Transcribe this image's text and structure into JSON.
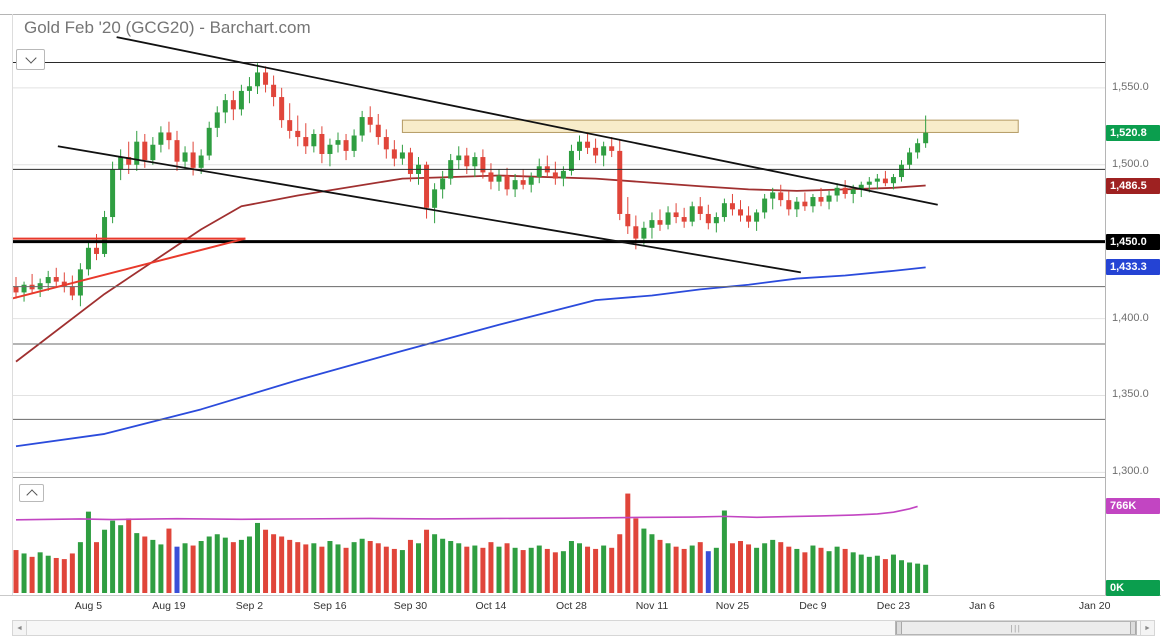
{
  "header": {
    "title": "Gold Feb '20 (GCG20) - Barchart.com"
  },
  "icons": {
    "arrow_left": "◄",
    "arrow_right": "►",
    "grip": "|||"
  },
  "chart_data": {
    "type": "candlestick",
    "title": "Gold Feb '20 (GCG20) - Barchart.com",
    "symbol": "GCG20",
    "colors": {
      "up": "#2f9e41",
      "down": "#e0453a",
      "blue_bar": "#3a4fd8",
      "oi": "#c245c2",
      "ma_red": "#a03030",
      "ma_blue": "#2b4bdc",
      "trend": "#111111",
      "red_line": "#e8392b",
      "grid": "#e2e2e2"
    },
    "price_axis": {
      "ylim": [
        1297,
        1598
      ],
      "ticks": [
        {
          "label": "1,550.0",
          "value": 1550
        },
        {
          "label": "1,500.0",
          "value": 1500
        },
        {
          "label": "1,450.0",
          "value": 1450
        },
        {
          "label": "1,400.0",
          "value": 1400
        },
        {
          "label": "1,350.0",
          "value": 1350
        },
        {
          "label": "1,300.0",
          "value": 1300
        }
      ]
    },
    "x_labels": [
      {
        "label": "Aug 5",
        "index": 9
      },
      {
        "label": "Aug 19",
        "index": 19
      },
      {
        "label": "Sep 2",
        "index": 29
      },
      {
        "label": "Sep 16",
        "index": 39
      },
      {
        "label": "Sep 30",
        "index": 49
      },
      {
        "label": "Oct 14",
        "index": 59
      },
      {
        "label": "Oct 28",
        "index": 69
      },
      {
        "label": "Nov 11",
        "index": 79
      },
      {
        "label": "Nov 25",
        "index": 89
      },
      {
        "label": "Dec 9",
        "index": 99
      },
      {
        "label": "Dec 23",
        "index": 109
      },
      {
        "label": "Jan 6",
        "index": 120
      },
      {
        "label": "Jan 20",
        "index": 134
      }
    ],
    "candles": [
      [
        1421,
        1427,
        1413,
        1417
      ],
      [
        1417,
        1424,
        1411,
        1422
      ],
      [
        1422,
        1429,
        1416,
        1419
      ],
      [
        1419,
        1426,
        1414,
        1423
      ],
      [
        1423,
        1431,
        1418,
        1427
      ],
      [
        1427,
        1433,
        1420,
        1424
      ],
      [
        1424,
        1430,
        1417,
        1421
      ],
      [
        1421,
        1428,
        1412,
        1415
      ],
      [
        1415,
        1436,
        1408,
        1432
      ],
      [
        1432,
        1450,
        1428,
        1446
      ],
      [
        1446,
        1455,
        1438,
        1442
      ],
      [
        1442,
        1470,
        1440,
        1466
      ],
      [
        1466,
        1502,
        1462,
        1497
      ],
      [
        1497,
        1510,
        1490,
        1505
      ],
      [
        1505,
        1515,
        1494,
        1500
      ],
      [
        1500,
        1522,
        1496,
        1515
      ],
      [
        1515,
        1520,
        1498,
        1503
      ],
      [
        1503,
        1518,
        1500,
        1513
      ],
      [
        1513,
        1525,
        1508,
        1521
      ],
      [
        1521,
        1528,
        1510,
        1516
      ],
      [
        1516,
        1522,
        1496,
        1502
      ],
      [
        1502,
        1512,
        1497,
        1508
      ],
      [
        1508,
        1515,
        1493,
        1498
      ],
      [
        1498,
        1510,
        1494,
        1506
      ],
      [
        1506,
        1528,
        1503,
        1524
      ],
      [
        1524,
        1538,
        1518,
        1534
      ],
      [
        1534,
        1546,
        1527,
        1542
      ],
      [
        1542,
        1548,
        1529,
        1536
      ],
      [
        1536,
        1552,
        1532,
        1548
      ],
      [
        1548,
        1557,
        1540,
        1551
      ],
      [
        1551,
        1566,
        1546,
        1560
      ],
      [
        1560,
        1564,
        1547,
        1552
      ],
      [
        1552,
        1558,
        1538,
        1544
      ],
      [
        1544,
        1550,
        1524,
        1529
      ],
      [
        1529,
        1540,
        1517,
        1522
      ],
      [
        1522,
        1532,
        1512,
        1518
      ],
      [
        1518,
        1527,
        1507,
        1512
      ],
      [
        1512,
        1523,
        1508,
        1520
      ],
      [
        1520,
        1525,
        1501,
        1507
      ],
      [
        1507,
        1517,
        1499,
        1513
      ],
      [
        1513,
        1521,
        1508,
        1516
      ],
      [
        1516,
        1520,
        1503,
        1509
      ],
      [
        1509,
        1523,
        1505,
        1519
      ],
      [
        1519,
        1535,
        1515,
        1531
      ],
      [
        1531,
        1538,
        1521,
        1526
      ],
      [
        1526,
        1533,
        1513,
        1518
      ],
      [
        1518,
        1523,
        1504,
        1510
      ],
      [
        1510,
        1516,
        1499,
        1504
      ],
      [
        1504,
        1513,
        1500,
        1508
      ],
      [
        1508,
        1511,
        1489,
        1494
      ],
      [
        1494,
        1505,
        1487,
        1500
      ],
      [
        1500,
        1502,
        1465,
        1472
      ],
      [
        1472,
        1488,
        1462,
        1484
      ],
      [
        1484,
        1496,
        1478,
        1491
      ],
      [
        1491,
        1507,
        1487,
        1503
      ],
      [
        1503,
        1512,
        1497,
        1506
      ],
      [
        1506,
        1511,
        1494,
        1499
      ],
      [
        1499,
        1508,
        1492,
        1505
      ],
      [
        1505,
        1510,
        1491,
        1495
      ],
      [
        1495,
        1501,
        1484,
        1489
      ],
      [
        1489,
        1497,
        1483,
        1493
      ],
      [
        1493,
        1498,
        1480,
        1484
      ],
      [
        1484,
        1494,
        1479,
        1490
      ],
      [
        1490,
        1497,
        1484,
        1487
      ],
      [
        1487,
        1495,
        1482,
        1492
      ],
      [
        1492,
        1504,
        1488,
        1499
      ],
      [
        1499,
        1506,
        1492,
        1495
      ],
      [
        1495,
        1502,
        1487,
        1491
      ],
      [
        1491,
        1499,
        1486,
        1496
      ],
      [
        1496,
        1513,
        1493,
        1509
      ],
      [
        1509,
        1519,
        1503,
        1515
      ],
      [
        1515,
        1521,
        1507,
        1511
      ],
      [
        1511,
        1517,
        1501,
        1506
      ],
      [
        1506,
        1515,
        1499,
        1512
      ],
      [
        1512,
        1518,
        1505,
        1509
      ],
      [
        1509,
        1516,
        1464,
        1468
      ],
      [
        1468,
        1479,
        1455,
        1460
      ],
      [
        1460,
        1467,
        1445,
        1452
      ],
      [
        1452,
        1463,
        1448,
        1459
      ],
      [
        1459,
        1469,
        1452,
        1464
      ],
      [
        1464,
        1471,
        1457,
        1461
      ],
      [
        1461,
        1473,
        1458,
        1469
      ],
      [
        1469,
        1475,
        1462,
        1466
      ],
      [
        1466,
        1472,
        1459,
        1463
      ],
      [
        1463,
        1476,
        1460,
        1473
      ],
      [
        1473,
        1479,
        1464,
        1468
      ],
      [
        1468,
        1474,
        1458,
        1462
      ],
      [
        1462,
        1469,
        1456,
        1466
      ],
      [
        1466,
        1478,
        1463,
        1475
      ],
      [
        1475,
        1481,
        1467,
        1471
      ],
      [
        1471,
        1477,
        1463,
        1467
      ],
      [
        1467,
        1473,
        1459,
        1463
      ],
      [
        1463,
        1471,
        1457,
        1469
      ],
      [
        1469,
        1481,
        1465,
        1478
      ],
      [
        1478,
        1485,
        1471,
        1482
      ],
      [
        1482,
        1487,
        1473,
        1477
      ],
      [
        1477,
        1483,
        1467,
        1471
      ],
      [
        1471,
        1479,
        1466,
        1476
      ],
      [
        1476,
        1482,
        1470,
        1473
      ],
      [
        1473,
        1481,
        1469,
        1479
      ],
      [
        1479,
        1485,
        1473,
        1476
      ],
      [
        1476,
        1483,
        1471,
        1480
      ],
      [
        1480,
        1488,
        1476,
        1485
      ],
      [
        1485,
        1490,
        1478,
        1481
      ],
      [
        1481,
        1487,
        1475,
        1484
      ],
      [
        1484,
        1489,
        1479,
        1487
      ],
      [
        1487,
        1492,
        1482,
        1489
      ],
      [
        1489,
        1494,
        1484,
        1491
      ],
      [
        1491,
        1496,
        1486,
        1488
      ],
      [
        1488,
        1494,
        1484,
        1492
      ],
      [
        1492,
        1503,
        1489,
        1500
      ],
      [
        1500,
        1511,
        1497,
        1508
      ],
      [
        1508,
        1517,
        1504,
        1514
      ],
      [
        1514,
        1532,
        1511,
        1520.8
      ]
    ],
    "volume": {
      "ylim_k": [
        0,
        1000
      ],
      "blue_indices": [
        20,
        86
      ],
      "values_k": [
        380,
        350,
        320,
        360,
        330,
        310,
        300,
        350,
        450,
        720,
        450,
        560,
        640,
        600,
        660,
        530,
        500,
        470,
        430,
        570,
        410,
        440,
        420,
        460,
        500,
        520,
        490,
        450,
        470,
        500,
        620,
        560,
        520,
        500,
        470,
        450,
        430,
        440,
        410,
        460,
        430,
        400,
        450,
        480,
        460,
        440,
        410,
        390,
        380,
        470,
        440,
        560,
        520,
        480,
        460,
        440,
        410,
        420,
        400,
        450,
        410,
        440,
        400,
        380,
        400,
        420,
        390,
        360,
        370,
        460,
        440,
        410,
        390,
        420,
        400,
        520,
        880,
        660,
        570,
        520,
        470,
        440,
        410,
        390,
        420,
        450,
        370,
        400,
        730,
        440,
        460,
        430,
        400,
        440,
        470,
        450,
        410,
        390,
        360,
        420,
        400,
        370,
        410,
        390,
        360,
        340,
        320,
        330,
        300,
        340,
        290,
        270,
        260,
        250
      ]
    },
    "open_interest_k": {
      "last_label": "766K",
      "points": [
        [
          0,
          648
        ],
        [
          8,
          655
        ],
        [
          12,
          650
        ],
        [
          20,
          658
        ],
        [
          28,
          652
        ],
        [
          36,
          656
        ],
        [
          44,
          660
        ],
        [
          52,
          655
        ],
        [
          60,
          660
        ],
        [
          68,
          662
        ],
        [
          76,
          668
        ],
        [
          84,
          672
        ],
        [
          88,
          678
        ],
        [
          92,
          670
        ],
        [
          96,
          676
        ],
        [
          100,
          682
        ],
        [
          104,
          690
        ],
        [
          107,
          700
        ],
        [
          109,
          715
        ],
        [
          111,
          745
        ],
        [
          112,
          766
        ]
      ]
    },
    "overlays": {
      "ma_red": {
        "last_value": 1486.5,
        "points": [
          [
            0,
            1372
          ],
          [
            11,
            1416
          ],
          [
            23,
            1458
          ],
          [
            28,
            1473
          ],
          [
            35,
            1480
          ],
          [
            48,
            1491
          ],
          [
            60,
            1493
          ],
          [
            72,
            1491
          ],
          [
            85,
            1486
          ],
          [
            91,
            1484
          ],
          [
            97,
            1483
          ],
          [
            103,
            1484
          ],
          [
            109,
            1485
          ],
          [
            113,
            1486.5
          ]
        ]
      },
      "ma_blue": {
        "last_value": 1433.3,
        "points": [
          [
            0,
            1317
          ],
          [
            11,
            1325
          ],
          [
            23,
            1341
          ],
          [
            35,
            1360
          ],
          [
            48,
            1379
          ],
          [
            60,
            1396
          ],
          [
            72,
            1412
          ],
          [
            79,
            1415
          ],
          [
            85,
            1419
          ],
          [
            91,
            1422
          ],
          [
            97,
            1426
          ],
          [
            103,
            1428
          ],
          [
            109,
            1431
          ],
          [
            113,
            1433.3
          ]
        ]
      },
      "trendlines": [
        {
          "from": [
            12.5,
            1583
          ],
          "to": [
            114.5,
            1474
          ]
        },
        {
          "from": [
            5.2,
            1512
          ],
          "to": [
            97.5,
            1430
          ]
        }
      ],
      "red_lines": [
        {
          "from": [
            -0.5,
            1452
          ],
          "to": [
            28.5,
            1452
          ]
        },
        {
          "from": [
            -0.5,
            1413
          ],
          "to": [
            28.5,
            1452
          ]
        }
      ],
      "horizontal_lines": [
        {
          "price": 1566.5,
          "color": "#2a2a2a",
          "width": 1
        },
        {
          "price": 1497.0,
          "color": "#2a2a2a",
          "width": 1
        },
        {
          "price": 1450.0,
          "color": "#000000",
          "width": 3
        },
        {
          "price": 1420.8,
          "color": "#6a6a6a",
          "width": 1
        },
        {
          "price": 1383.5,
          "color": "#6a6a6a",
          "width": 1
        },
        {
          "price": 1334.5,
          "color": "#6a6a6a",
          "width": 1
        }
      ],
      "rectangle": {
        "from_index": 48,
        "to_index": 124.5,
        "price_top": 1529,
        "price_bottom": 1521,
        "fill": "#f8ecca",
        "border": "#b49a64"
      }
    },
    "badges": [
      {
        "name": "last-price-badge",
        "label": "1,520.8",
        "value": 1520.8,
        "pane": "price",
        "color": "#0b9e4e"
      },
      {
        "name": "ma-red-badge",
        "label": "1,486.5",
        "value": 1486.5,
        "pane": "price",
        "color": "#9e2121"
      },
      {
        "name": "horizontal-line-badge",
        "label": "1,450.0",
        "value": 1450,
        "pane": "price",
        "color": "#000000"
      },
      {
        "name": "ma-blue-badge",
        "label": "1,433.3",
        "value": 1433.3,
        "pane": "price",
        "color": "#2443d4"
      },
      {
        "name": "open-interest-badge",
        "label": "766K",
        "value": 766,
        "pane": "volume",
        "color": "#c245c2"
      },
      {
        "name": "volume-badge",
        "label": "0K",
        "value": 0,
        "pane": "volume",
        "color": "#0b9e4e"
      }
    ]
  }
}
